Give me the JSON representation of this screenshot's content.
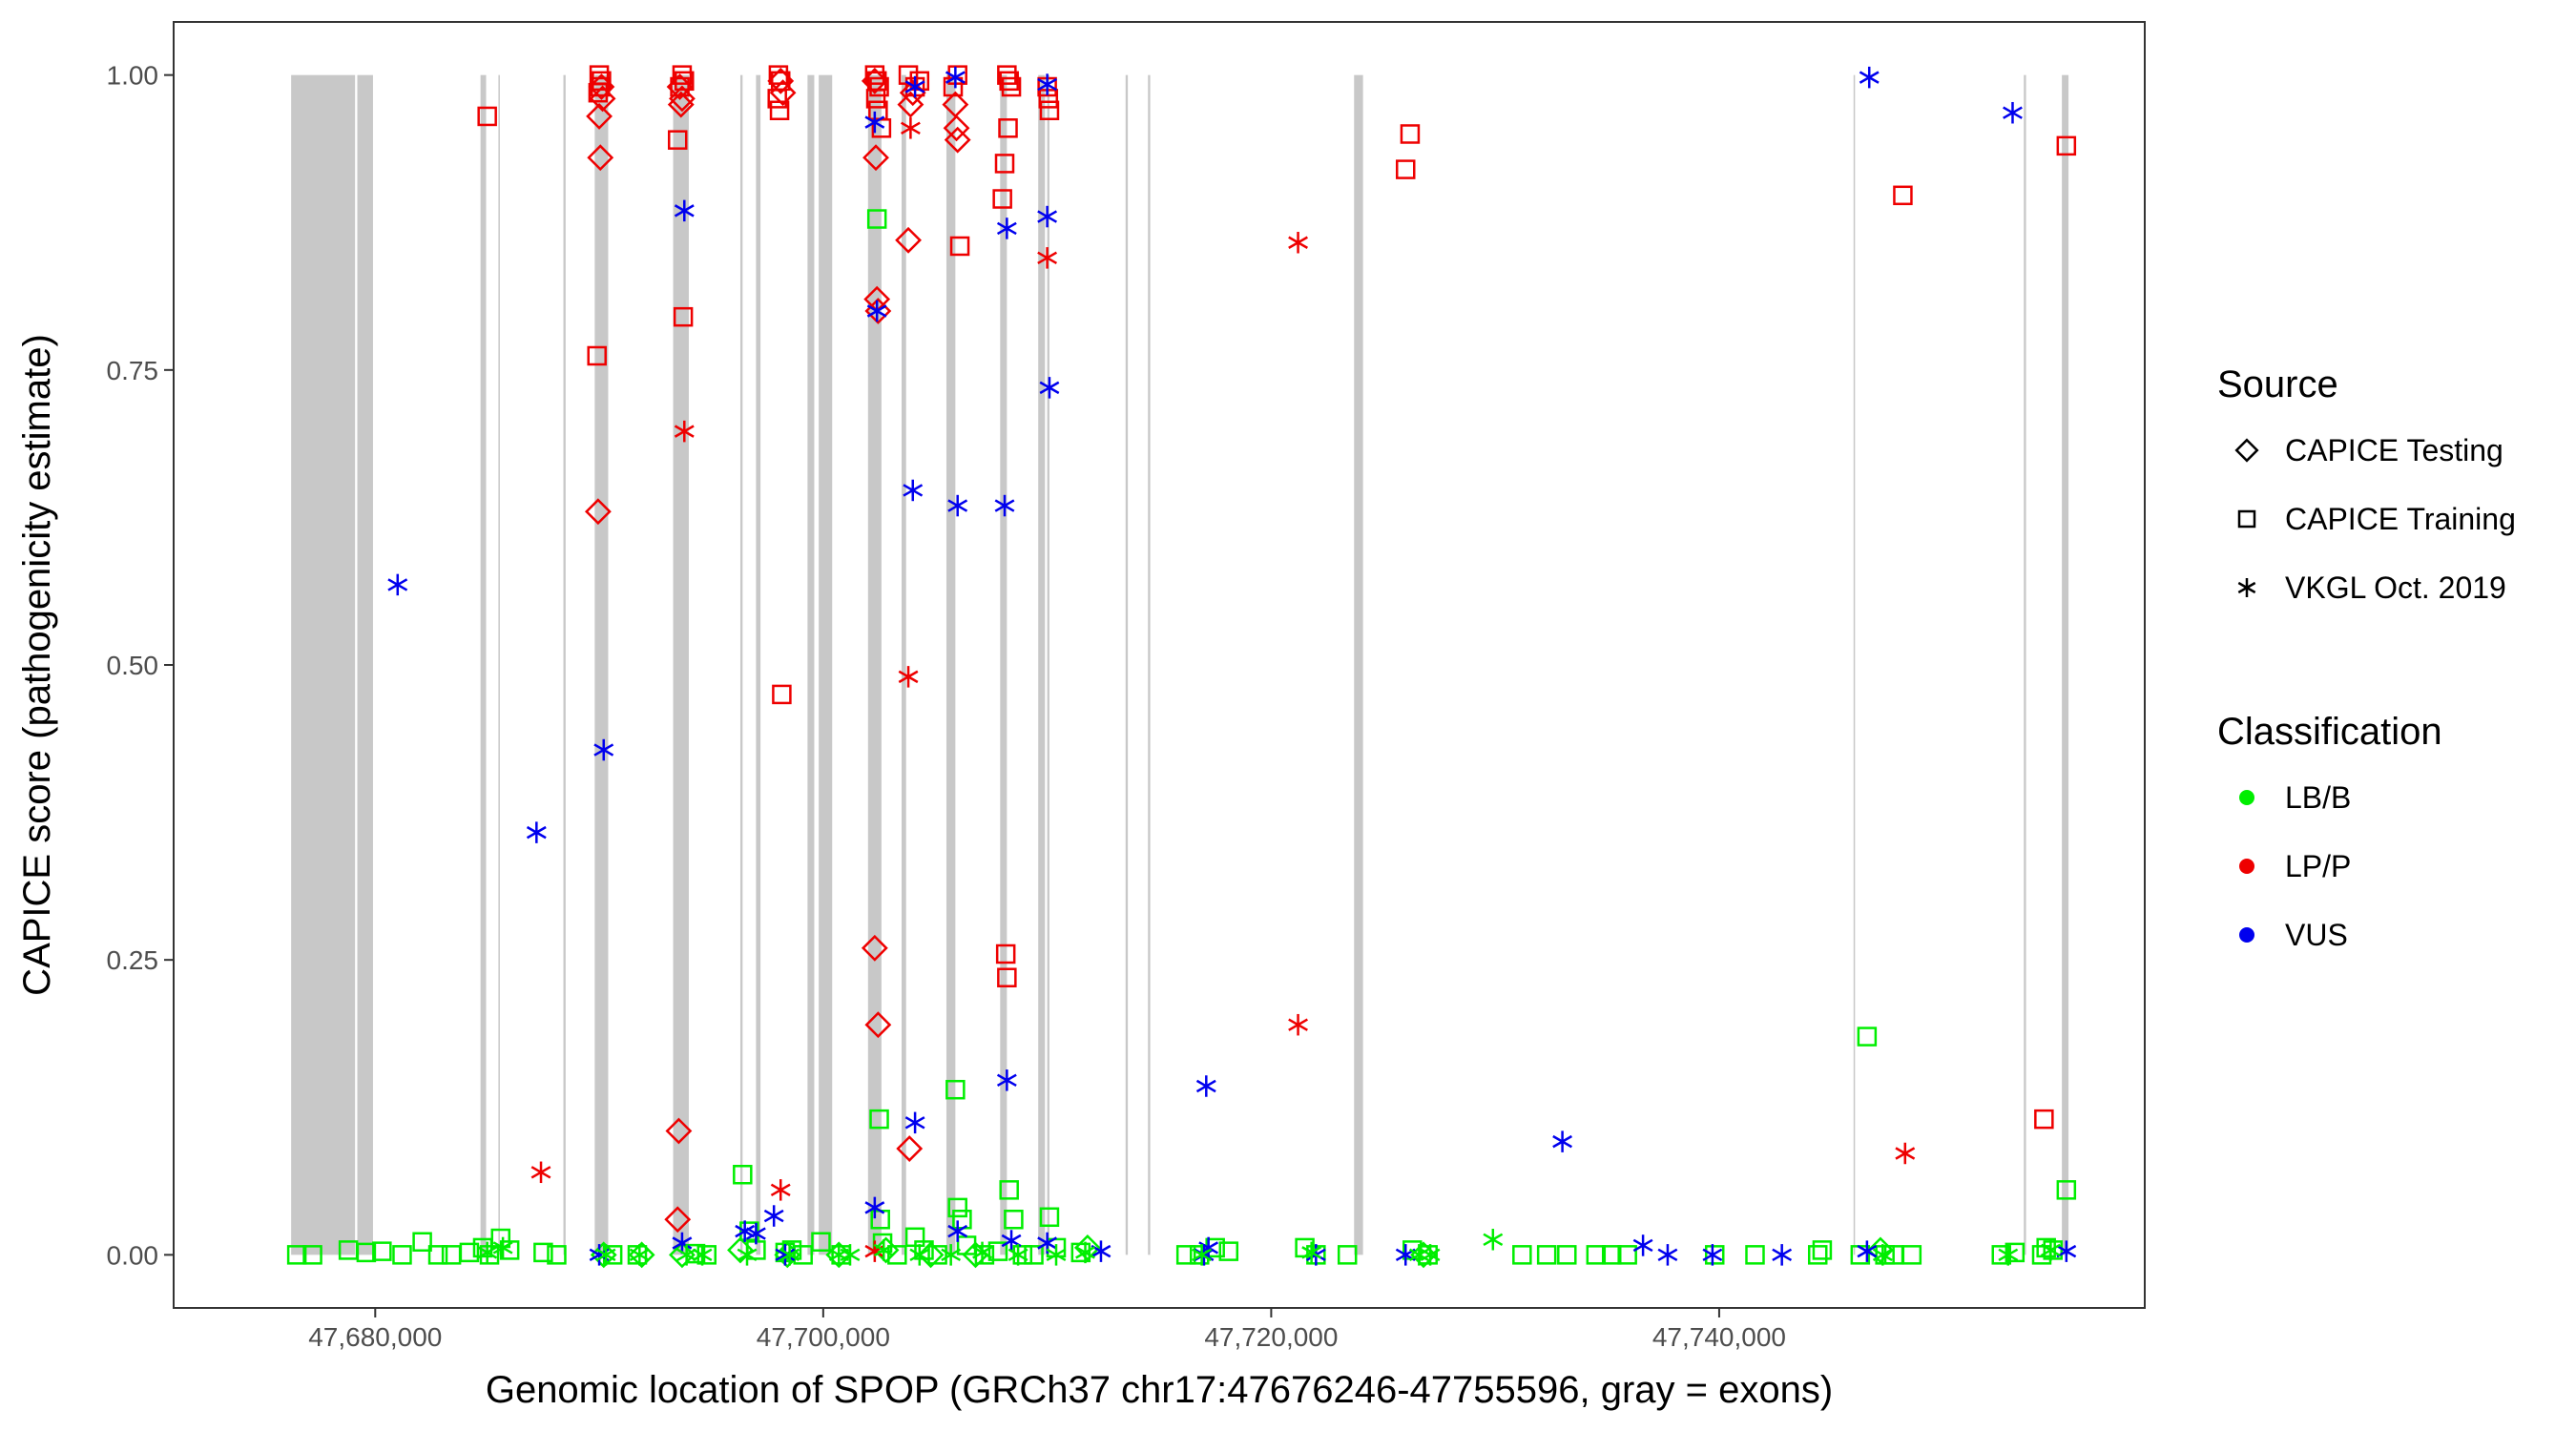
{
  "chart_data": {
    "type": "scatter",
    "title": "",
    "xlabel": "Genomic location of SPOP (GRCh37 chr17:47676246-47755596, gray = exons)",
    "ylabel": "CAPICE score (pathogenicity estimate)",
    "xlim": [
      47671000,
      47759000
    ],
    "ylim": [
      -0.045,
      1.045
    ],
    "x_ticks": [
      {
        "value": 47680000,
        "label": "47,680,000"
      },
      {
        "value": 47700000,
        "label": "47,700,000"
      },
      {
        "value": 47720000,
        "label": "47,720,000"
      },
      {
        "value": 47740000,
        "label": "47,740,000"
      }
    ],
    "y_ticks": [
      {
        "value": 0.0,
        "label": "0.00"
      },
      {
        "value": 0.25,
        "label": "0.25"
      },
      {
        "value": 0.5,
        "label": "0.50"
      },
      {
        "value": 0.75,
        "label": "0.75"
      },
      {
        "value": 1.0,
        "label": "1.00"
      }
    ],
    "exons": [
      [
        47676246,
        47679100
      ],
      [
        47679200,
        47679900
      ],
      [
        47684700,
        47684950
      ],
      [
        47685500,
        47685560
      ],
      [
        47688400,
        47688500
      ],
      [
        47689800,
        47690400
      ],
      [
        47693300,
        47694000
      ],
      [
        47696300,
        47696400
      ],
      [
        47697000,
        47697200
      ],
      [
        47699300,
        47699600
      ],
      [
        47699800,
        47700400
      ],
      [
        47702000,
        47702600
      ],
      [
        47703500,
        47703700
      ],
      [
        47705500,
        47705900
      ],
      [
        47707900,
        47708200
      ],
      [
        47709600,
        47709900
      ],
      [
        47710000,
        47710100
      ],
      [
        47713500,
        47713600
      ],
      [
        47714500,
        47714600
      ],
      [
        47723700,
        47724100
      ],
      [
        47746000,
        47746050
      ],
      [
        47753600,
        47753700
      ],
      [
        47755300,
        47755596
      ]
    ],
    "legend": {
      "source_title": "Source",
      "source_items": [
        {
          "label": "CAPICE Testing",
          "shape": "diamond"
        },
        {
          "label": "CAPICE Training",
          "shape": "square"
        },
        {
          "label": "VKGL Oct. 2019",
          "shape": "asterisk"
        }
      ],
      "class_title": "Classification",
      "class_items": [
        {
          "label": "LB/B",
          "color": "#00ee00"
        },
        {
          "label": "LP/P",
          "color": "#ee0000"
        },
        {
          "label": "VUS",
          "color": "#0000ee"
        }
      ]
    },
    "series": [
      {
        "name": "CAPICE Testing",
        "classification": "LP/P",
        "shape": "diamond",
        "color": "#ee0000",
        "points": [
          [
            47690100,
            0.99
          ],
          [
            47690150,
            0.98
          ],
          [
            47690000,
            0.965
          ],
          [
            47690050,
            0.93
          ],
          [
            47689950,
            0.63
          ],
          [
            47693600,
            0.99
          ],
          [
            47693700,
            0.98
          ],
          [
            47693650,
            0.975
          ],
          [
            47693550,
            0.105
          ],
          [
            47693500,
            0.03
          ],
          [
            47698100,
            0.995
          ],
          [
            47698200,
            0.985
          ],
          [
            47702300,
            0.995
          ],
          [
            47702350,
            0.93
          ],
          [
            47702400,
            0.81
          ],
          [
            47702450,
            0.8
          ],
          [
            47702300,
            0.26
          ],
          [
            47702450,
            0.195
          ],
          [
            47704000,
            0.985
          ],
          [
            47703900,
            0.975
          ],
          [
            47703800,
            0.86
          ],
          [
            47703850,
            0.09
          ],
          [
            47705900,
            0.975
          ],
          [
            47705950,
            0.955
          ],
          [
            47706000,
            0.945
          ]
        ]
      },
      {
        "name": "CAPICE Training",
        "classification": "LP/P",
        "shape": "square",
        "color": "#ee0000",
        "points": [
          [
            47685000,
            0.965
          ],
          [
            47690000,
            1.0
          ],
          [
            47690100,
            0.995
          ],
          [
            47690050,
            0.99
          ],
          [
            47689950,
            0.985
          ],
          [
            47689900,
            0.762
          ],
          [
            47693700,
            1.0
          ],
          [
            47693800,
            0.995
          ],
          [
            47693600,
            0.99
          ],
          [
            47693500,
            0.945
          ],
          [
            47693750,
            0.795
          ],
          [
            47698000,
            1.0
          ],
          [
            47698100,
            0.995
          ],
          [
            47697950,
            0.98
          ],
          [
            47698050,
            0.97
          ],
          [
            47698150,
            0.475
          ],
          [
            47702300,
            1.0
          ],
          [
            47702400,
            0.995
          ],
          [
            47702500,
            0.99
          ],
          [
            47702350,
            0.98
          ],
          [
            47702450,
            0.97
          ],
          [
            47702600,
            0.955
          ],
          [
            47703800,
            1.0
          ],
          [
            47704300,
            0.995
          ],
          [
            47704100,
            0.99
          ],
          [
            47706000,
            1.0
          ],
          [
            47705800,
            0.99
          ],
          [
            47708200,
            1.0
          ],
          [
            47708300,
            0.995
          ],
          [
            47708400,
            0.99
          ],
          [
            47708250,
            0.955
          ],
          [
            47708100,
            0.925
          ],
          [
            47708000,
            0.895
          ],
          [
            47708150,
            0.255
          ],
          [
            47708200,
            0.235
          ],
          [
            47710000,
            0.99
          ],
          [
            47710050,
            0.98
          ],
          [
            47710100,
            0.97
          ],
          [
            47706100,
            0.855
          ],
          [
            47726200,
            0.95
          ],
          [
            47726000,
            0.92
          ],
          [
            47748200,
            0.898
          ],
          [
            47755500,
            0.94
          ],
          [
            47754500,
            0.115
          ]
        ]
      },
      {
        "name": "CAPICE Training",
        "classification": "LB/B",
        "shape": "square",
        "color": "#00ee00",
        "points": [
          [
            47676500,
            0.0
          ],
          [
            47677200,
            0.0
          ],
          [
            47678800,
            0.004
          ],
          [
            47679600,
            0.002
          ],
          [
            47680300,
            0.003
          ],
          [
            47681200,
            0.0
          ],
          [
            47682100,
            0.011
          ],
          [
            47682800,
            0.0
          ],
          [
            47683400,
            0.0
          ],
          [
            47684200,
            0.002
          ],
          [
            47684800,
            0.006
          ],
          [
            47685100,
            0.0
          ],
          [
            47685600,
            0.014
          ],
          [
            47686000,
            0.004
          ],
          [
            47687500,
            0.002
          ],
          [
            47688100,
            0.0
          ],
          [
            47690600,
            0.0
          ],
          [
            47691700,
            0.0
          ],
          [
            47694300,
            0.001
          ],
          [
            47694800,
            0.0
          ],
          [
            47696400,
            0.068
          ],
          [
            47696700,
            0.02
          ],
          [
            47697000,
            0.004
          ],
          [
            47698300,
            0.002
          ],
          [
            47698600,
            0.004
          ],
          [
            47699100,
            0.0
          ],
          [
            47699900,
            0.011
          ],
          [
            47700800,
            0.0
          ],
          [
            47702400,
            0.878
          ],
          [
            47702500,
            0.115
          ],
          [
            47702550,
            0.03
          ],
          [
            47702650,
            0.01
          ],
          [
            47703300,
            0.0
          ],
          [
            47704100,
            0.015
          ],
          [
            47704500,
            0.004
          ],
          [
            47705100,
            0.0
          ],
          [
            47705900,
            0.14
          ],
          [
            47706000,
            0.04
          ],
          [
            47706200,
            0.03
          ],
          [
            47706400,
            0.008
          ],
          [
            47707200,
            0.0
          ],
          [
            47707800,
            0.003
          ],
          [
            47708300,
            0.055
          ],
          [
            47708500,
            0.03
          ],
          [
            47708900,
            0.0
          ],
          [
            47709400,
            0.0
          ],
          [
            47710100,
            0.032
          ],
          [
            47710400,
            0.006
          ],
          [
            47711500,
            0.002
          ],
          [
            47716200,
            0.0
          ],
          [
            47716800,
            0.0
          ],
          [
            47717500,
            0.006
          ],
          [
            47718100,
            0.003
          ],
          [
            47721500,
            0.006
          ],
          [
            47722000,
            0.0
          ],
          [
            47723400,
            0.0
          ],
          [
            47726300,
            0.004
          ],
          [
            47727000,
            0.0
          ],
          [
            47731200,
            0.0
          ],
          [
            47732300,
            0.0
          ],
          [
            47733200,
            0.0
          ],
          [
            47734500,
            0.0
          ],
          [
            47735200,
            0.0
          ],
          [
            47735900,
            0.0
          ],
          [
            47739800,
            0.0
          ],
          [
            47741600,
            0.0
          ],
          [
            47744400,
            0.0
          ],
          [
            47744600,
            0.004
          ],
          [
            47746300,
            0.0
          ],
          [
            47746600,
            0.185
          ],
          [
            47747400,
            0.0
          ],
          [
            47747800,
            0.0
          ],
          [
            47748600,
            0.0
          ],
          [
            47752600,
            0.0
          ],
          [
            47753200,
            0.002
          ],
          [
            47754400,
            0.0
          ],
          [
            47754600,
            0.006
          ],
          [
            47754900,
            0.004
          ],
          [
            47755500,
            0.055
          ]
        ]
      },
      {
        "name": "CAPICE Testing",
        "classification": "LB/B",
        "shape": "diamond",
        "color": "#00ee00",
        "points": [
          [
            47690200,
            0.0
          ],
          [
            47691900,
            0.0
          ],
          [
            47693700,
            0.0
          ],
          [
            47696300,
            0.004
          ],
          [
            47698400,
            0.0
          ],
          [
            47700700,
            0.0
          ],
          [
            47702800,
            0.004
          ],
          [
            47704800,
            0.0
          ],
          [
            47706800,
            0.0
          ],
          [
            47711800,
            0.006
          ],
          [
            47726800,
            0.0
          ],
          [
            47747200,
            0.004
          ]
        ]
      },
      {
        "name": "VKGL Oct. 2019",
        "classification": "LP/P",
        "shape": "asterisk",
        "color": "#ee0000",
        "points": [
          [
            47687400,
            0.07
          ],
          [
            47693800,
            0.698
          ],
          [
            47698100,
            0.055
          ],
          [
            47703900,
            0.955
          ],
          [
            47703800,
            0.49
          ],
          [
            47702300,
            0.003
          ],
          [
            47710000,
            0.845
          ],
          [
            47721200,
            0.858
          ],
          [
            47721200,
            0.195
          ],
          [
            47748300,
            0.086
          ]
        ]
      },
      {
        "name": "VKGL Oct. 2019",
        "classification": "VUS",
        "shape": "asterisk",
        "color": "#0000ee",
        "points": [
          [
            47681000,
            0.568
          ],
          [
            47687200,
            0.358
          ],
          [
            47690200,
            0.428
          ],
          [
            47693800,
            0.885
          ],
          [
            47693700,
            0.01
          ],
          [
            47690000,
            0.0
          ],
          [
            47696500,
            0.02
          ],
          [
            47697000,
            0.018
          ],
          [
            47697800,
            0.033
          ],
          [
            47698300,
            0.0
          ],
          [
            47702300,
            0.96
          ],
          [
            47702400,
            0.8
          ],
          [
            47702300,
            0.04
          ],
          [
            47704000,
            0.648
          ],
          [
            47704100,
            0.112
          ],
          [
            47704100,
            0.99
          ],
          [
            47705900,
            0.998
          ],
          [
            47706000,
            0.635
          ],
          [
            47706000,
            0.02
          ],
          [
            47708200,
            0.87
          ],
          [
            47708100,
            0.635
          ],
          [
            47708200,
            0.148
          ],
          [
            47708400,
            0.012
          ],
          [
            47710000,
            0.88
          ],
          [
            47710100,
            0.735
          ],
          [
            47710000,
            0.992
          ],
          [
            47710000,
            0.01
          ],
          [
            47712400,
            0.003
          ],
          [
            47717100,
            0.143
          ],
          [
            47717000,
            0.0
          ],
          [
            47717200,
            0.006
          ],
          [
            47722000,
            0.0
          ],
          [
            47726000,
            0.0
          ],
          [
            47733000,
            0.096
          ],
          [
            47736600,
            0.008
          ],
          [
            47737700,
            0.0
          ],
          [
            47739700,
            0.0
          ],
          [
            47742800,
            0.0
          ],
          [
            47746700,
            0.998
          ],
          [
            47746600,
            0.003
          ],
          [
            47753100,
            0.968
          ],
          [
            47755500,
            0.003
          ]
        ]
      },
      {
        "name": "VKGL Oct. 2019",
        "classification": "LB/B",
        "shape": "asterisk",
        "color": "#00ee00",
        "points": [
          [
            47685000,
            0.002
          ],
          [
            47685700,
            0.006
          ],
          [
            47690300,
            0.0
          ],
          [
            47691800,
            0.0
          ],
          [
            47693900,
            0.0
          ],
          [
            47694600,
            0.0
          ],
          [
            47696600,
            0.0
          ],
          [
            47698500,
            0.0
          ],
          [
            47700700,
            0.0
          ],
          [
            47701200,
            0.0
          ],
          [
            47702700,
            0.004
          ],
          [
            47704300,
            0.0
          ],
          [
            47705700,
            0.0
          ],
          [
            47707100,
            0.002
          ],
          [
            47708700,
            0.0
          ],
          [
            47710400,
            0.0
          ],
          [
            47711700,
            0.002
          ],
          [
            47716900,
            0.0
          ],
          [
            47721800,
            0.002
          ],
          [
            47726600,
            0.0
          ],
          [
            47727100,
            0.0
          ],
          [
            47729900,
            0.013
          ],
          [
            47747300,
            0.0
          ],
          [
            47752900,
            0.0
          ],
          [
            47754800,
            0.004
          ]
        ]
      }
    ]
  }
}
